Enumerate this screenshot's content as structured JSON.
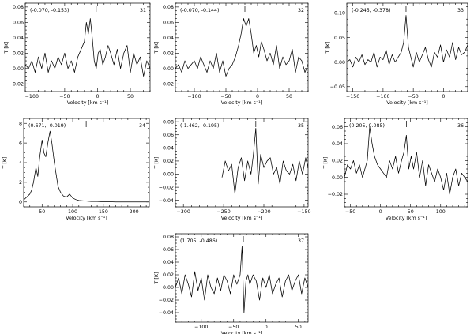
{
  "chart_data": [
    {
      "type": "line",
      "id": "31",
      "coords_label": "(-0.070, -0.153)",
      "panel_number": "31",
      "xlabel": "Velocity [km s⁻¹]",
      "ylabel": "T [K]",
      "xlim": [
        -110,
        80
      ],
      "ylim": [
        -0.03,
        0.085
      ],
      "xticks": [
        -100,
        -50,
        0,
        50
      ],
      "yticks": [
        -0.02,
        0.0,
        0.02,
        0.04,
        0.06,
        0.08
      ],
      "ytick_labels": [
        "−0.02",
        "0.00",
        "0.02",
        "0.04",
        "0.06",
        "0.08"
      ],
      "marker_x": -2,
      "x": [
        -110,
        -105,
        -100,
        -95,
        -90,
        -85,
        -80,
        -75,
        -70,
        -65,
        -60,
        -55,
        -50,
        -45,
        -40,
        -35,
        -30,
        -25,
        -20,
        -17,
        -14,
        -11,
        -8,
        -5,
        -2,
        1,
        4,
        8,
        12,
        16,
        20,
        25,
        30,
        35,
        40,
        45,
        50,
        55,
        60,
        65,
        70,
        75,
        80
      ],
      "y": [
        0.005,
        0.0,
        0.01,
        -0.005,
        0.015,
        0.0,
        0.02,
        -0.005,
        0.01,
        0.0,
        0.015,
        0.005,
        0.02,
        0.0,
        0.01,
        -0.005,
        0.015,
        0.025,
        0.035,
        0.06,
        0.045,
        0.065,
        0.04,
        0.01,
        0.0,
        0.02,
        0.025,
        0.005,
        0.015,
        0.03,
        0.02,
        0.005,
        0.025,
        0.0,
        0.02,
        0.03,
        -0.005,
        0.02,
        0.005,
        0.015,
        -0.01,
        0.01,
        0.0
      ]
    },
    {
      "type": "line",
      "id": "32",
      "coords_label": "(-0.070, -0.144)",
      "panel_number": "32",
      "xlabel": "Velocity [km s⁻¹]",
      "ylabel": "T [K]",
      "xlim": [
        -130,
        80
      ],
      "ylim": [
        -0.03,
        0.085
      ],
      "xticks": [
        -100,
        -50,
        0,
        50
      ],
      "yticks": [
        -0.02,
        0.0,
        0.02,
        0.04,
        0.06,
        0.08
      ],
      "ytick_labels": [
        "−0.02",
        "0.00",
        "0.02",
        "0.04",
        "0.06",
        "0.08"
      ],
      "marker_x": -20,
      "x": [
        -130,
        -125,
        -120,
        -115,
        -110,
        -105,
        -100,
        -95,
        -90,
        -85,
        -80,
        -75,
        -70,
        -65,
        -60,
        -55,
        -50,
        -45,
        -40,
        -35,
        -30,
        -26,
        -22,
        -18,
        -14,
        -10,
        -6,
        -2,
        2,
        6,
        10,
        15,
        20,
        25,
        30,
        35,
        40,
        45,
        50,
        55,
        60,
        65,
        70,
        75,
        80
      ],
      "y": [
        0.0,
        0.005,
        -0.005,
        0.01,
        0.0,
        0.005,
        0.01,
        0.0,
        0.015,
        0.005,
        -0.005,
        0.01,
        0.0,
        0.02,
        -0.005,
        0.01,
        -0.01,
        0.0,
        0.005,
        0.015,
        0.03,
        0.045,
        0.065,
        0.055,
        0.065,
        0.045,
        0.02,
        0.03,
        0.015,
        0.035,
        0.025,
        0.01,
        0.02,
        0.005,
        0.03,
        0.0,
        0.015,
        0.005,
        0.01,
        0.025,
        -0.005,
        0.015,
        0.01,
        -0.005,
        0.005
      ]
    },
    {
      "type": "line",
      "id": "33",
      "coords_label": "(-0.245, -0.378)",
      "panel_number": "33",
      "xlabel": "Velocity [km s⁻¹]",
      "ylabel": "T [K]",
      "xlim": [
        -160,
        40
      ],
      "ylim": [
        -0.06,
        0.12
      ],
      "xticks": [
        -150,
        -100,
        -50,
        0
      ],
      "yticks": [
        -0.05,
        0.0,
        0.05,
        0.1
      ],
      "ytick_labels": [
        "−0.05",
        "0.00",
        "0.05",
        "0.10"
      ],
      "marker_x": -62,
      "x": [
        -160,
        -155,
        -150,
        -145,
        -140,
        -135,
        -130,
        -125,
        -120,
        -115,
        -110,
        -105,
        -100,
        -95,
        -90,
        -85,
        -80,
        -75,
        -70,
        -66,
        -62,
        -58,
        -54,
        -50,
        -45,
        -40,
        -35,
        -30,
        -25,
        -20,
        -15,
        -10,
        -5,
        0,
        5,
        10,
        15,
        20,
        25,
        30,
        35,
        40
      ],
      "y": [
        0.0,
        0.005,
        -0.01,
        0.01,
        0.0,
        0.015,
        -0.005,
        0.005,
        0.0,
        0.02,
        -0.01,
        0.01,
        0.005,
        0.025,
        -0.005,
        0.015,
        0.0,
        0.01,
        0.02,
        0.04,
        0.095,
        0.03,
        0.01,
        -0.01,
        0.02,
        0.0,
        0.015,
        0.03,
        0.005,
        -0.01,
        0.02,
        0.01,
        0.035,
        0.0,
        0.025,
        0.01,
        0.04,
        0.005,
        0.03,
        0.015,
        0.02,
        0.035
      ]
    },
    {
      "type": "line",
      "id": "34",
      "coords_label": "(0.671, -0.019)",
      "panel_number": "34",
      "xlabel": "Velocity [km s⁻¹]",
      "ylabel": "T [K]",
      "xlim": [
        20,
        225
      ],
      "ylim": [
        -0.5,
        8.5
      ],
      "xticks": [
        50,
        100,
        150,
        200
      ],
      "yticks": [
        0,
        2,
        4,
        6,
        8
      ],
      "ytick_labels": [
        "0",
        "2",
        "4",
        "6",
        "8"
      ],
      "marker_x": 122,
      "x": [
        20,
        25,
        30,
        33,
        36,
        40,
        43,
        46,
        50,
        53,
        56,
        60,
        63,
        66,
        70,
        73,
        76,
        80,
        85,
        90,
        95,
        100,
        105,
        110,
        120,
        130,
        140,
        150,
        160,
        170,
        180,
        190,
        200,
        210,
        225
      ],
      "y": [
        0.2,
        0.5,
        0.8,
        1.2,
        2.0,
        3.5,
        2.6,
        4.5,
        6.3,
        5.0,
        4.6,
        6.2,
        7.2,
        6.0,
        4.0,
        2.8,
        1.6,
        1.0,
        0.6,
        0.5,
        0.8,
        0.4,
        0.25,
        0.15,
        0.1,
        0.05,
        0.05,
        0.02,
        0.02,
        0.0,
        0.0,
        0.0,
        0.0,
        0.0,
        0.0
      ]
    },
    {
      "type": "line",
      "id": "35",
      "coords_label": "(-1.462, -0.195)",
      "panel_number": "35",
      "xlabel": "Velocity [km s⁻¹]",
      "ylabel": "T [K]",
      "xlim": [
        -310,
        -145
      ],
      "ylim": [
        -0.05,
        0.085
      ],
      "xticks": [
        -300,
        -250,
        -200,
        -150
      ],
      "yticks": [
        -0.04,
        -0.02,
        0.0,
        0.02,
        0.04,
        0.06,
        0.08
      ],
      "ytick_labels": [
        "−0.04",
        "−0.02",
        "0.00",
        "0.02",
        "0.04",
        "0.06",
        "0.08"
      ],
      "marker_x": -210,
      "x": [
        -252,
        -248,
        -244,
        -240,
        -236,
        -232,
        -228,
        -224,
        -220,
        -216,
        -213,
        -210,
        -207,
        -204,
        -200,
        -196,
        -192,
        -188,
        -184,
        -180,
        -176,
        -172,
        -168,
        -164,
        -160,
        -156,
        -152,
        -148,
        -145
      ],
      "y": [
        -0.005,
        0.02,
        0.005,
        0.015,
        -0.03,
        0.01,
        0.025,
        -0.01,
        0.02,
        0.0,
        0.03,
        0.07,
        -0.015,
        0.03,
        0.01,
        0.02,
        0.025,
        0.0,
        0.01,
        -0.015,
        0.02,
        0.005,
        0.0,
        0.015,
        -0.01,
        0.02,
        0.0,
        0.025,
        0.01
      ]
    },
    {
      "type": "line",
      "id": "36",
      "coords_label": "(0.205, 0.085)",
      "panel_number": "36",
      "xlabel": "Velocity [km s⁻¹]",
      "ylabel": "T [K]",
      "xlim": [
        -60,
        145
      ],
      "ylim": [
        -0.035,
        0.07
      ],
      "xticks": [
        -50,
        0,
        50,
        100
      ],
      "yticks": [
        -0.02,
        0.0,
        0.02,
        0.04,
        0.06
      ],
      "ytick_labels": [
        "−0.02",
        "0.00",
        "0.02",
        "0.04",
        "0.06"
      ],
      "marker_x": 43,
      "x": [
        -60,
        -55,
        -50,
        -45,
        -40,
        -35,
        -30,
        -26,
        -22,
        -18,
        -14,
        -10,
        -5,
        0,
        5,
        10,
        15,
        20,
        25,
        30,
        35,
        39,
        43,
        47,
        51,
        55,
        60,
        65,
        70,
        75,
        80,
        85,
        90,
        95,
        100,
        105,
        110,
        115,
        120,
        125,
        130,
        135,
        140,
        145
      ],
      "y": [
        0.0,
        0.015,
        0.01,
        0.02,
        0.005,
        0.015,
        0.0,
        0.01,
        0.02,
        0.06,
        0.04,
        0.025,
        0.015,
        0.01,
        0.005,
        0.0,
        0.02,
        0.01,
        0.025,
        0.005,
        0.02,
        0.03,
        0.05,
        0.01,
        0.025,
        0.01,
        0.03,
        0.0,
        0.02,
        -0.01,
        0.015,
        0.005,
        -0.005,
        0.01,
        0.0,
        -0.015,
        0.005,
        -0.02,
        0.0,
        0.01,
        -0.01,
        0.005,
        0.0,
        -0.005
      ]
    },
    {
      "type": "line",
      "id": "37",
      "coords_label": "(1.705, -0.486)",
      "panel_number": "37",
      "xlabel": "Velocity [km s⁻¹]",
      "ylabel": "T [K]",
      "xlim": [
        -140,
        65
      ],
      "ylim": [
        -0.055,
        0.085
      ],
      "xticks": [
        -100,
        -50,
        0,
        50
      ],
      "yticks": [
        -0.04,
        -0.02,
        0.0,
        0.02,
        0.04,
        0.06,
        0.08
      ],
      "ytick_labels": [
        "−0.04",
        "−0.02",
        "0.00",
        "0.02",
        "0.04",
        "0.06",
        "0.08"
      ],
      "marker_x": -35,
      "x": [
        -140,
        -135,
        -130,
        -125,
        -120,
        -115,
        -110,
        -105,
        -100,
        -95,
        -90,
        -85,
        -80,
        -75,
        -70,
        -65,
        -60,
        -55,
        -50,
        -45,
        -40,
        -37,
        -34,
        -31,
        -28,
        -25,
        -20,
        -15,
        -10,
        -5,
        0,
        5,
        10,
        15,
        20,
        25,
        30,
        35,
        40,
        45,
        50,
        55,
        60,
        65
      ],
      "y": [
        0.0,
        0.015,
        -0.01,
        0.02,
        0.005,
        -0.015,
        0.025,
        -0.005,
        0.015,
        -0.02,
        0.02,
        0.0,
        -0.01,
        0.015,
        -0.005,
        0.02,
        0.01,
        -0.01,
        0.02,
        0.005,
        0.02,
        0.065,
        -0.04,
        0.01,
        0.02,
        0.005,
        0.02,
        0.01,
        -0.02,
        0.015,
        0.0,
        0.02,
        -0.01,
        0.005,
        0.015,
        -0.015,
        0.01,
        0.02,
        -0.005,
        0.01,
        0.02,
        -0.01,
        0.015,
        0.0
      ]
    }
  ]
}
